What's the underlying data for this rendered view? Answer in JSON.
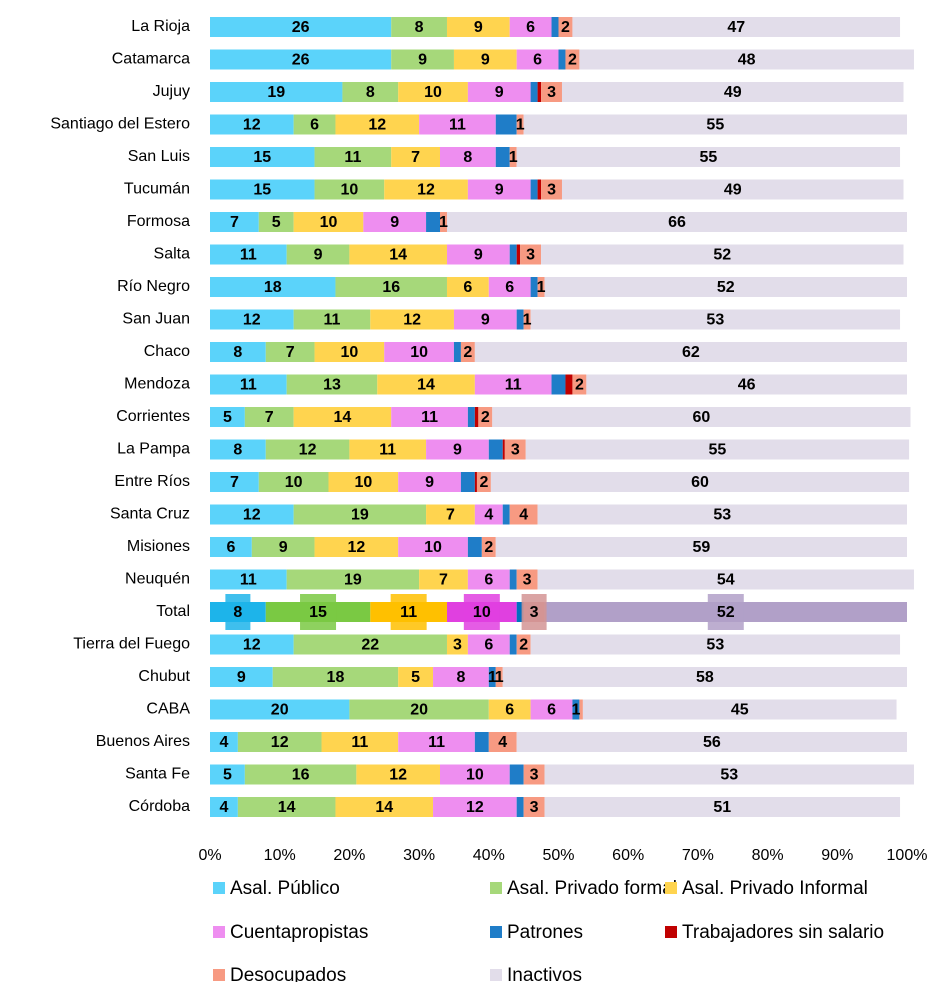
{
  "chart_data": {
    "type": "stacked-bar-horizontal",
    "categories": [
      "La Rioja",
      "Catamarca",
      "Jujuy",
      "Santiago del Estero",
      "San Luis",
      "Tucumán",
      "Formosa",
      "Salta",
      "Río Negro",
      "San Juan",
      "Chaco",
      "Mendoza",
      "Corrientes",
      "La Pampa",
      "Entre Ríos",
      "Santa Cruz",
      "Misiones",
      "Neuquén",
      "Total",
      "Tierra del Fuego",
      "Chubut",
      "CABA",
      "Buenos Aires",
      "Santa Fe",
      "Córdoba"
    ],
    "series": [
      {
        "name": "Asal. Público",
        "color": "#5bd3fa",
        "highlight_color": "#1db4ea",
        "values": [
          26,
          26,
          19,
          12,
          15,
          15,
          7,
          11,
          18,
          12,
          8,
          11,
          5,
          8,
          7,
          12,
          6,
          11,
          8,
          12,
          9,
          20,
          4,
          5,
          4
        ],
        "value_labels": [
          26,
          26,
          19,
          12,
          15,
          15,
          7,
          11,
          18,
          12,
          8,
          11,
          5,
          8,
          7,
          12,
          6,
          11,
          8,
          12,
          9,
          20,
          4,
          5,
          4
        ]
      },
      {
        "name": "Asal. Privado formal",
        "color": "#a6d87a",
        "highlight_color": "#7ac943",
        "values": [
          8,
          9,
          8,
          6,
          11,
          10,
          5,
          9,
          16,
          11,
          7,
          13,
          7,
          12,
          10,
          19,
          9,
          19,
          15,
          22,
          18,
          20,
          12,
          16,
          14
        ],
        "value_labels": [
          8,
          9,
          8,
          6,
          11,
          10,
          5,
          9,
          16,
          11,
          7,
          13,
          7,
          12,
          10,
          19,
          9,
          19,
          15,
          22,
          18,
          20,
          12,
          16,
          14
        ]
      },
      {
        "name": "Asal. Privado Informal",
        "color": "#ffd44f",
        "highlight_color": "#ffc000",
        "values": [
          9,
          9,
          10,
          12,
          7,
          12,
          10,
          14,
          6,
          12,
          10,
          14,
          14,
          11,
          10,
          7,
          12,
          7,
          11,
          3,
          5,
          6,
          11,
          12,
          14
        ],
        "value_labels": [
          9,
          9,
          10,
          12,
          7,
          12,
          10,
          14,
          6,
          12,
          10,
          14,
          14,
          11,
          10,
          7,
          12,
          7,
          11,
          3,
          5,
          6,
          11,
          12,
          14
        ]
      },
      {
        "name": "Cuentapropistas",
        "color": "#ee8ef0",
        "highlight_color": "#e040e0",
        "values": [
          6,
          6,
          9,
          11,
          8,
          9,
          9,
          9,
          6,
          9,
          10,
          11,
          11,
          9,
          9,
          4,
          10,
          6,
          10,
          6,
          8,
          6,
          11,
          10,
          12
        ],
        "value_labels": [
          6,
          6,
          9,
          11,
          8,
          9,
          9,
          9,
          6,
          9,
          10,
          11,
          11,
          9,
          9,
          4,
          10,
          6,
          10,
          6,
          8,
          6,
          11,
          10,
          12
        ]
      },
      {
        "name": "Patrones",
        "color": "#1f7dc8",
        "highlight_color": "#0070c0",
        "values": [
          1,
          1,
          1,
          3,
          2,
          1,
          2,
          1,
          1,
          1,
          1,
          2,
          1,
          2,
          2,
          1,
          2,
          1,
          1,
          1,
          1,
          1,
          2,
          2,
          1
        ],
        "value_labels": [
          null,
          null,
          null,
          null,
          null,
          null,
          null,
          null,
          null,
          null,
          null,
          null,
          null,
          null,
          null,
          null,
          null,
          null,
          null,
          null,
          1,
          1,
          null,
          null,
          null
        ]
      },
      {
        "name": "Trabajadores sin salario",
        "color": "#c00000",
        "highlight_color": "#c00000",
        "values": [
          0,
          0,
          0.5,
          0,
          0,
          0.5,
          0,
          0.5,
          0,
          0,
          0,
          1,
          0.5,
          0.3,
          0.3,
          0,
          0,
          0,
          0,
          0,
          0,
          0,
          0,
          0,
          0
        ],
        "value_labels": [
          null,
          null,
          null,
          null,
          null,
          null,
          null,
          null,
          null,
          null,
          null,
          null,
          null,
          null,
          null,
          null,
          null,
          null,
          null,
          null,
          null,
          null,
          null,
          null,
          null
        ]
      },
      {
        "name": "Desocupados",
        "color": "#f79a82",
        "highlight_color": "#d49494",
        "values": [
          2,
          2,
          3,
          1,
          1,
          3,
          1,
          3,
          1,
          1,
          2,
          2,
          2,
          3,
          2,
          4,
          2,
          3,
          3,
          2,
          1,
          0.5,
          4,
          3,
          3
        ],
        "value_labels": [
          2,
          2,
          3,
          1,
          1,
          3,
          1,
          3,
          1,
          1,
          2,
          2,
          2,
          3,
          2,
          4,
          2,
          3,
          3,
          2,
          1,
          null,
          4,
          3,
          3
        ]
      },
      {
        "name": "Inactivos",
        "color": "#e2ddea",
        "highlight_color": "#b1a0c8",
        "values": [
          47,
          48,
          49,
          55,
          55,
          49,
          66,
          52,
          52,
          53,
          62,
          46,
          60,
          55,
          60,
          53,
          59,
          54,
          52,
          53,
          58,
          45,
          56,
          53,
          51
        ],
        "value_labels": [
          47,
          48,
          49,
          55,
          55,
          49,
          66,
          52,
          52,
          53,
          62,
          46,
          60,
          55,
          60,
          53,
          59,
          54,
          52,
          53,
          58,
          45,
          56,
          53,
          51
        ]
      }
    ],
    "highlight_index": 18,
    "xlim": [
      0,
      100
    ],
    "xticks": [
      {
        "value": 0,
        "label": "0%"
      },
      {
        "value": 10,
        "label": "10%"
      },
      {
        "value": 20,
        "label": "20%"
      },
      {
        "value": 30,
        "label": "30%"
      },
      {
        "value": 40,
        "label": "40%"
      },
      {
        "value": 50,
        "label": "50%"
      },
      {
        "value": 60,
        "label": "60%"
      },
      {
        "value": 70,
        "label": "70%"
      },
      {
        "value": 80,
        "label": "80%"
      },
      {
        "value": 90,
        "label": "90%"
      },
      {
        "value": 100,
        "label": "100%"
      }
    ],
    "legend": "bottom"
  }
}
